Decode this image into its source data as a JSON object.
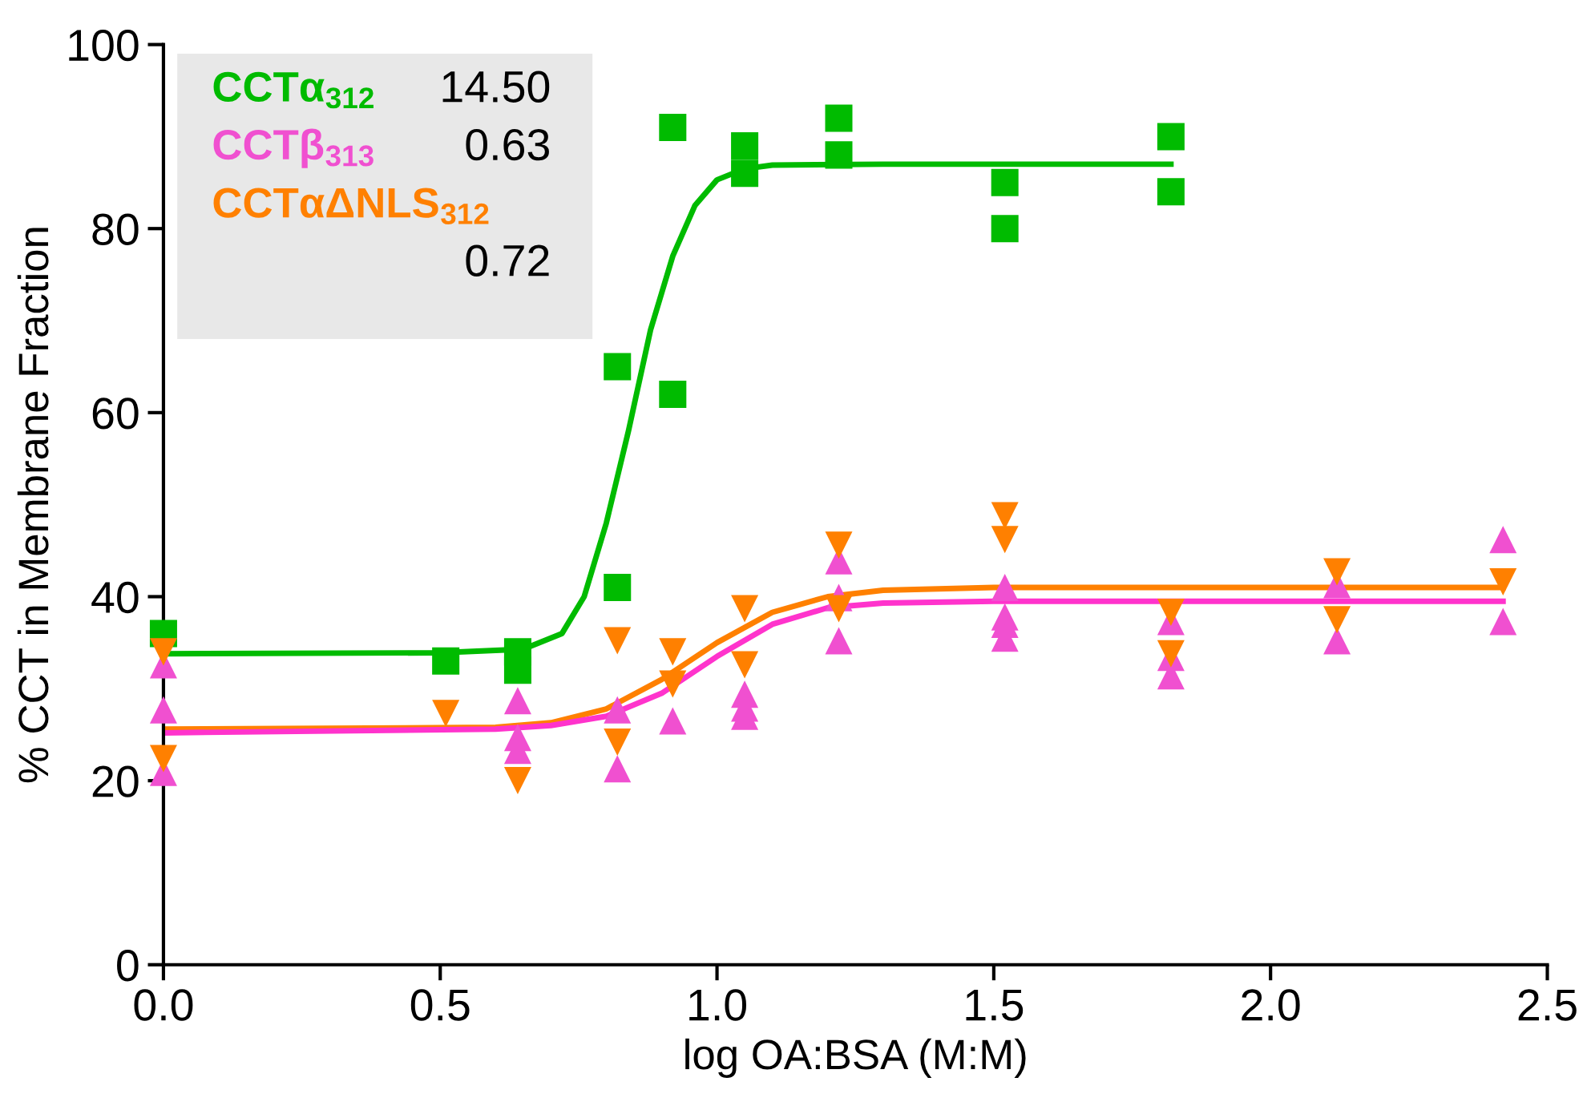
{
  "chart_data": {
    "type": "scatter",
    "xlabel": "log OA:BSA (M:M)",
    "ylabel": "% CCT in Membrane Fraction",
    "xlim": [
      0,
      2.5
    ],
    "xticks": [
      {
        "value": 0,
        "label": "0.0"
      },
      0.5,
      {
        "value": 1,
        "label": "1.0"
      },
      1.5,
      {
        "value": 2,
        "label": "2.0"
      },
      2.5
    ],
    "ylim": [
      0,
      100
    ],
    "yticks": [
      0,
      20,
      40,
      60,
      80,
      100
    ],
    "grid": false,
    "legend": "top left",
    "annotations": [
      "14.50",
      "0.63",
      "0.72"
    ],
    "series": [
      {
        "name": "CCTα$_{312}$",
        "color": "#00bb00",
        "marker": "square",
        "x": [
          0,
          0.51,
          0.64,
          0.64,
          0.82,
          0.82,
          0.92,
          0.92,
          1.05,
          1.05,
          1.22,
          1.22,
          1.52,
          1.52,
          1.82,
          1.82
        ],
        "values": [
          36,
          33,
          34,
          32,
          65,
          41,
          91,
          62,
          89,
          86,
          92,
          88,
          85,
          80,
          90,
          84
        ]
      },
      {
        "name": "CCTβ$_{313}$",
        "color": "#f050d0",
        "marker": "triangle",
        "x": [
          0,
          0,
          0,
          0.64,
          0.64,
          0.64,
          0.82,
          0.82,
          0.92,
          1.05,
          1.05,
          1.05,
          1.22,
          1.22,
          1.22,
          1.52,
          1.52,
          1.52,
          1.52,
          1.82,
          1.82,
          1.82,
          2.12,
          2.12,
          2.42,
          2.42
        ],
        "values": [
          32.6,
          27.7,
          20.9,
          28.7,
          24.7,
          23.3,
          27.7,
          21.3,
          26.5,
          29.4,
          27.9,
          27,
          43.9,
          39.9,
          35.2,
          41,
          37.8,
          37,
          35.5,
          37.3,
          33.4,
          31.4,
          41.3,
          35.2,
          46.2,
          37.3
        ]
      },
      {
        "name": "CCTαΔNLS$_{312}$",
        "color": "#ff8000",
        "marker": "triangle_down",
        "x": [
          0,
          0,
          0.51,
          0.64,
          0.82,
          0.82,
          0.92,
          0.92,
          1.05,
          1.05,
          1.22,
          1.22,
          1.52,
          1.52,
          1.82,
          1.82,
          2.12,
          2.12,
          2.42
        ],
        "values": [
          34,
          22.4,
          27.3,
          20,
          35.2,
          24.2,
          34,
          30.5,
          38.7,
          32.6,
          45.6,
          38.7,
          48.8,
          46.2,
          38.3,
          33.8,
          42.7,
          37.5,
          41.6
        ]
      },
      {
        "type": "line",
        "color": "#00bb00",
        "marker": "none",
        "x": [
          0,
          0.5,
          0.65,
          0.72,
          0.76,
          0.8,
          0.84,
          0.88,
          0.92,
          0.96,
          1.0,
          1.05,
          1.1,
          1.3,
          1.82
        ],
        "values": [
          33.8,
          33.9,
          34.3,
          36,
          40,
          48,
          58,
          69,
          77,
          82.5,
          85.3,
          86.5,
          86.9,
          87,
          87
        ]
      },
      {
        "type": "line",
        "color": "#ff8000",
        "marker": "none",
        "x": [
          0,
          0.6,
          0.7,
          0.8,
          0.9,
          1.0,
          1.1,
          1.2,
          1.3,
          1.5,
          2.42
        ],
        "values": [
          25.6,
          25.8,
          26.3,
          27.8,
          31,
          35,
          38.3,
          40,
          40.7,
          41,
          41
        ]
      },
      {
        "type": "line",
        "color": "#ff33cc",
        "marker": "none",
        "x": [
          0,
          0.6,
          0.7,
          0.8,
          0.9,
          1.0,
          1.1,
          1.2,
          1.3,
          1.5,
          2.42
        ],
        "values": [
          25.2,
          25.6,
          26,
          27,
          29.5,
          33.5,
          37,
          38.8,
          39.3,
          39.5,
          39.5
        ]
      }
    ]
  }
}
